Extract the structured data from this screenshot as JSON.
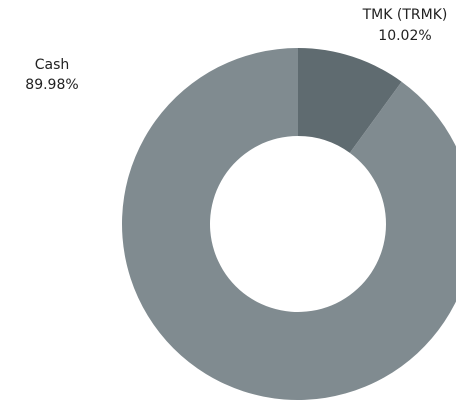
{
  "chart_data": {
    "type": "pie",
    "categories": [
      "TMK (TRMK)",
      "Cash"
    ],
    "values": [
      10.02,
      89.98
    ],
    "value_labels": [
      "10.02%",
      "89.98%"
    ],
    "colors": [
      "#5f6b70",
      "#808b90"
    ],
    "donut": true
  }
}
